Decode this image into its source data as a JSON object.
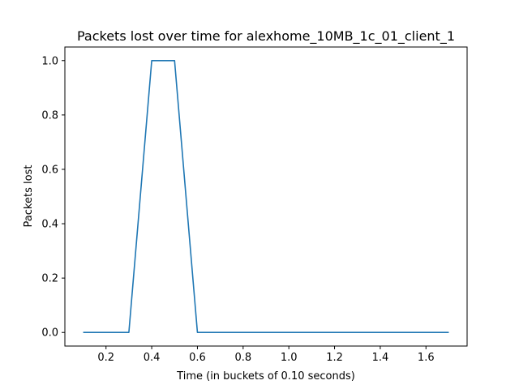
{
  "chart_data": {
    "type": "line",
    "title": "Packets lost over time for alexhome_10MB_1c_01_client_1",
    "xlabel": "Time (in buckets of 0.10 seconds)",
    "ylabel": "Packets lost",
    "xlim": [
      0.02,
      1.78
    ],
    "ylim": [
      -0.05,
      1.05
    ],
    "xticks": [
      0.2,
      0.4,
      0.6,
      0.8,
      1.0,
      1.2,
      1.4,
      1.6
    ],
    "xtick_labels": [
      "0.2",
      "0.4",
      "0.6",
      "0.8",
      "1.0",
      "1.2",
      "1.4",
      "1.6"
    ],
    "yticks": [
      0.0,
      0.2,
      0.4,
      0.6,
      0.8,
      1.0
    ],
    "ytick_labels": [
      "0.0",
      "0.2",
      "0.4",
      "0.6",
      "0.8",
      "1.0"
    ],
    "grid": false,
    "series": [
      {
        "name": "packets-lost",
        "color": "#1f77b4",
        "x": [
          0.1,
          0.2,
          0.3,
          0.4,
          0.5,
          0.6,
          0.7,
          0.8,
          0.9,
          1.0,
          1.1,
          1.2,
          1.3,
          1.4,
          1.5,
          1.6,
          1.7
        ],
        "y": [
          0,
          0,
          0,
          1,
          1,
          0,
          0,
          0,
          0,
          0,
          0,
          0,
          0,
          0,
          0,
          0,
          0
        ]
      }
    ]
  }
}
